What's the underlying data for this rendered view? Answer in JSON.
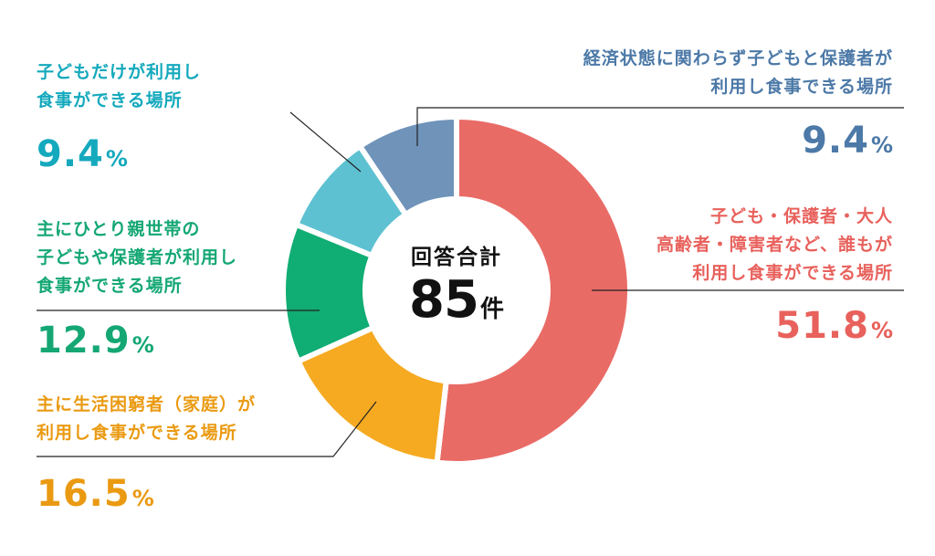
{
  "chart_data": {
    "type": "pie",
    "center_title": "回答合計",
    "center_total": "85",
    "center_unit": "件",
    "percent_symbol": "%",
    "slices": [
      {
        "label_lines": [
          "子ども・保護者・大人",
          "高齢者・障害者など、誰もが",
          "利用し食事ができる場所"
        ],
        "value": 51.8,
        "value_text": "51.8",
        "color": "#e96b66"
      },
      {
        "label_lines": [
          "主に生活困窮者（家庭）が",
          "利用し食事ができる場所"
        ],
        "value": 16.5,
        "value_text": "16.5",
        "color": "#f5aa22"
      },
      {
        "label_lines": [
          "主にひとり親世帯の",
          "子どもや保護者が利用し",
          "食事ができる場所"
        ],
        "value": 12.9,
        "value_text": "12.9",
        "color": "#10ad74"
      },
      {
        "label_lines": [
          "子どもだけが利用し",
          "食事ができる場所"
        ],
        "value": 9.4,
        "value_text": "9.4",
        "color": "#5dc1d1"
      },
      {
        "label_lines": [
          "経済状態に関わらず子どもと保護者が",
          "利用し食事できる場所"
        ],
        "value": 9.4,
        "value_text": "9.4",
        "color": "#6f93b9"
      }
    ],
    "text_colors": [
      "#e8615c",
      "#ea9a12",
      "#14a774",
      "#15a9bd",
      "#4c79a7"
    ]
  }
}
